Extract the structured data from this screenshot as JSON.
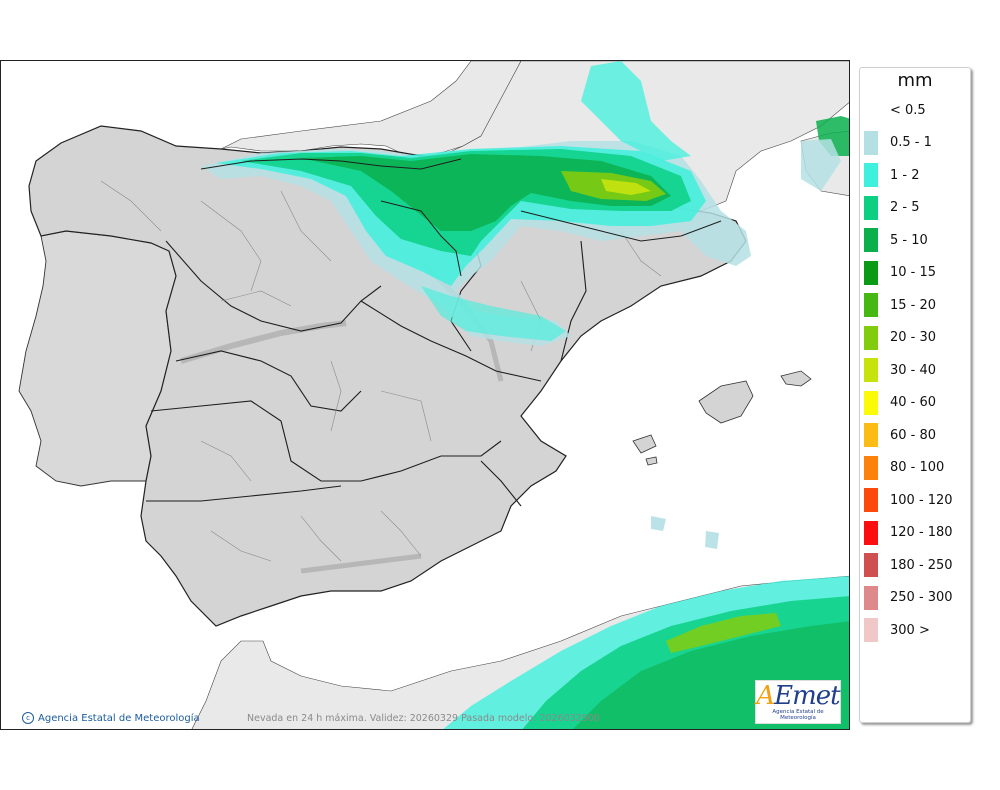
{
  "credit_text": "Agencia Estatal de Meteorología",
  "caption": "Nevada en 24 h máxima. Validez: 20260329 Pasada modelo: 2026032900",
  "logo": {
    "mark_a": "A",
    "mark_rest": "Emet",
    "subtitle": "Agencia Estatal de Meteorología"
  },
  "legend": {
    "unit": "mm",
    "items": [
      {
        "label": "< 0.5",
        "color": "#ffffff"
      },
      {
        "label": "0.5 - 1",
        "color": "#b4e0e4"
      },
      {
        "label": "1 - 2",
        "color": "#3ff0dc"
      },
      {
        "label": "2 - 5",
        "color": "#0ccf84"
      },
      {
        "label": "5 - 10",
        "color": "#0bb04d"
      },
      {
        "label": "10 - 15",
        "color": "#0a9a16"
      },
      {
        "label": "15 - 20",
        "color": "#45b814"
      },
      {
        "label": "20 - 30",
        "color": "#82cc0e"
      },
      {
        "label": "30 - 40",
        "color": "#c6e30e"
      },
      {
        "label": "40 - 60",
        "color": "#fbfb07"
      },
      {
        "label": "60 - 80",
        "color": "#fcbc16"
      },
      {
        "label": "80 - 100",
        "color": "#fc820c"
      },
      {
        "label": "100 - 120",
        "color": "#fc4a0c"
      },
      {
        "label": "120 - 180",
        "color": "#fc0d10"
      },
      {
        "label": "180 - 250",
        "color": "#cf5050"
      },
      {
        "label": "250 - 300",
        "color": "#df8a8a"
      },
      {
        "label": "300 >",
        "color": "#f0c8c8"
      }
    ]
  }
}
